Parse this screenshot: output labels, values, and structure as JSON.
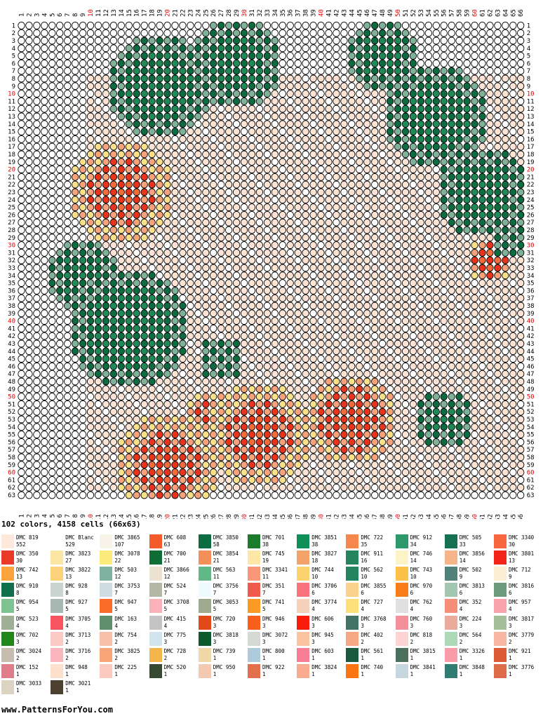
{
  "pattern": {
    "columns": 66,
    "rows": 63,
    "cols_highlight_every": 10,
    "highlight_color": "#e00000",
    "outline_color": "#000000",
    "empty_fill": "#ffffff",
    "default_fill": "#fde3d4",
    "motif_colors": {
      "green_dark": "#0d6b40",
      "green_mid": "#1f8a55",
      "green_light": "#7fb098",
      "green_pale": "#b9d4c6",
      "red": "#e8341c",
      "orange": "#f26b3a",
      "salmon": "#f7a27a",
      "yellow": "#fbe08a",
      "peach": "#fde3d4"
    }
  },
  "summary_text": "102 colors, 4158 cells (66x63)",
  "legend": [
    {
      "name": "DMC 819",
      "count": "552",
      "color": "#fce9dc"
    },
    {
      "name": "DMC Blanc",
      "count": "529",
      "color": "#ffffff"
    },
    {
      "name": "DMC 3865",
      "count": "107",
      "color": "#f8f4ea"
    },
    {
      "name": "DMC 608",
      "count": "63",
      "color": "#f55a2c"
    },
    {
      "name": "DMC 3850",
      "count": "58",
      "color": "#0b6b41"
    },
    {
      "name": "DMC 701",
      "count": "38",
      "color": "#1c7a2c"
    },
    {
      "name": "DMC 3851",
      "count": "38",
      "color": "#0f9058"
    },
    {
      "name": "DMC 722",
      "count": "35",
      "color": "#f7874d"
    },
    {
      "name": "DMC 912",
      "count": "34",
      "color": "#2e9a6c"
    },
    {
      "name": "DMC 505",
      "count": "33",
      "color": "#157152"
    },
    {
      "name": "DMC 3340",
      "count": "30",
      "color": "#f7663d"
    },
    {
      "name": "DMC 350",
      "count": "30",
      "color": "#e83a27"
    },
    {
      "name": "DMC 3823",
      "count": "27",
      "color": "#fbe6a3"
    },
    {
      "name": "DMC 3078",
      "count": "22",
      "color": "#fbea7c"
    },
    {
      "name": "DMC 700",
      "count": "21",
      "color": "#0e6e35"
    },
    {
      "name": "DMC 3854",
      "count": "21",
      "color": "#f39059"
    },
    {
      "name": "DMC 745",
      "count": "19",
      "color": "#fde6a6"
    },
    {
      "name": "DMC 3827",
      "count": "18",
      "color": "#f3a36a"
    },
    {
      "name": "DMC 911",
      "count": "16",
      "color": "#24845d"
    },
    {
      "name": "DMC 746",
      "count": "14",
      "color": "#fcf4c6"
    },
    {
      "name": "DMC 3856",
      "count": "14",
      "color": "#f6b48a"
    },
    {
      "name": "DMC 3801",
      "count": "13",
      "color": "#f3251b"
    },
    {
      "name": "DMC 742",
      "count": "13",
      "color": "#fba33c"
    },
    {
      "name": "DMC 3822",
      "count": "13",
      "color": "#fbd27a"
    },
    {
      "name": "DMC 503",
      "count": "12",
      "color": "#7fb1a0"
    },
    {
      "name": "DMC 3866",
      "count": "12",
      "color": "#ebe2d2"
    },
    {
      "name": "DMC 563",
      "count": "11",
      "color": "#62b787"
    },
    {
      "name": "DMC 3341",
      "count": "11",
      "color": "#f99879"
    },
    {
      "name": "DMC 744",
      "count": "10",
      "color": "#fcd26e"
    },
    {
      "name": "DMC 562",
      "count": "10",
      "color": "#228560"
    },
    {
      "name": "DMC 743",
      "count": "10",
      "color": "#fbc14a"
    },
    {
      "name": "DMC 502",
      "count": "9",
      "color": "#52807a"
    },
    {
      "name": "DMC 712",
      "count": "9",
      "color": "#fbeed2"
    },
    {
      "name": "DMC 910",
      "count": "8",
      "color": "#10704c"
    },
    {
      "name": "DMC 928",
      "count": "8",
      "color": "#c9d3cf"
    },
    {
      "name": "DMC 3753",
      "count": "7",
      "color": "#cfdce2"
    },
    {
      "name": "DMC 524",
      "count": "7",
      "color": "#b2b8a4"
    },
    {
      "name": "DMC 3756",
      "count": "7",
      "color": "#eef9fb"
    },
    {
      "name": "DMC 351",
      "count": "7",
      "color": "#ef5a4c"
    },
    {
      "name": "DMC 3706",
      "count": "6",
      "color": "#f8737c"
    },
    {
      "name": "DMC 3855",
      "count": "6",
      "color": "#fad28c"
    },
    {
      "name": "DMC 970",
      "count": "6",
      "color": "#f87e1c"
    },
    {
      "name": "DMC 3813",
      "count": "6",
      "color": "#a3c6b1"
    },
    {
      "name": "DMC 3816",
      "count": "6",
      "color": "#6b9a7d"
    },
    {
      "name": "DMC 954",
      "count": "5",
      "color": "#7fc393"
    },
    {
      "name": "DMC 927",
      "count": "5",
      "color": "#a8b9b4"
    },
    {
      "name": "DMC 947",
      "count": "5",
      "color": "#fb6b2a"
    },
    {
      "name": "DMC 3708",
      "count": "5",
      "color": "#fbb1b9"
    },
    {
      "name": "DMC 3053",
      "count": "5",
      "color": "#9daa8e"
    },
    {
      "name": "DMC 741",
      "count": "5",
      "color": "#fb9b25"
    },
    {
      "name": "DMC 3774",
      "count": "4",
      "color": "#f6d2bb"
    },
    {
      "name": "DMC 727",
      "count": "4",
      "color": "#fde07a"
    },
    {
      "name": "DMC 762",
      "count": "4",
      "color": "#e0e0e0"
    },
    {
      "name": "DMC 352",
      "count": "4",
      "color": "#f68f7a"
    },
    {
      "name": "DMC 957",
      "count": "4",
      "color": "#f8a2aa"
    },
    {
      "name": "DMC 523",
      "count": "4",
      "color": "#a0ae95"
    },
    {
      "name": "DMC 3705",
      "count": "4",
      "color": "#f6545f"
    },
    {
      "name": "DMC 163",
      "count": "4",
      "color": "#5f8f6c"
    },
    {
      "name": "DMC 415",
      "count": "4",
      "color": "#c4c4c4"
    },
    {
      "name": "DMC 720",
      "count": "3",
      "color": "#e2491a"
    },
    {
      "name": "DMC 946",
      "count": "3",
      "color": "#f65f1c"
    },
    {
      "name": "DMC 606",
      "count": "3",
      "color": "#fa1c0c"
    },
    {
      "name": "DMC 3768",
      "count": "3",
      "color": "#427165"
    },
    {
      "name": "DMC 760",
      "count": "3",
      "color": "#f4909a"
    },
    {
      "name": "DMC 224",
      "count": "3",
      "color": "#eaab9c"
    },
    {
      "name": "DMC 3817",
      "count": "3",
      "color": "#a4c09a"
    },
    {
      "name": "DMC 702",
      "count": "3",
      "color": "#22861c"
    },
    {
      "name": "DMC 3713",
      "count": "2",
      "color": "#fbcac4"
    },
    {
      "name": "DMC 754",
      "count": "2",
      "color": "#f8c0a8"
    },
    {
      "name": "DMC 775",
      "count": "3",
      "color": "#d2e4ec"
    },
    {
      "name": "DMC 3818",
      "count": "3",
      "color": "#0d5a2f"
    },
    {
      "name": "DMC 3072",
      "count": "3",
      "color": "#d4d9d4"
    },
    {
      "name": "DMC 945",
      "count": "3",
      "color": "#fbc3a0"
    },
    {
      "name": "DMC 402",
      "count": "2",
      "color": "#f5a882"
    },
    {
      "name": "DMC 818",
      "count": "2",
      "color": "#fdd4d4"
    },
    {
      "name": "DMC 564",
      "count": "2",
      "color": "#aed9b8"
    },
    {
      "name": "DMC 3779",
      "count": "2",
      "color": "#f8b6a2"
    },
    {
      "name": "DMC 3024",
      "count": "2",
      "color": "#c5bdb0"
    },
    {
      "name": "DMC 3716",
      "count": "2",
      "color": "#fbb6bd"
    },
    {
      "name": "DMC 3825",
      "count": "2",
      "color": "#f8a57a"
    },
    {
      "name": "DMC 728",
      "count": "2",
      "color": "#f4b64a"
    },
    {
      "name": "DMC 739",
      "count": "1",
      "color": "#f0d7a8"
    },
    {
      "name": "DMC 800",
      "count": "1",
      "color": "#aecbdc"
    },
    {
      "name": "DMC 603",
      "count": "1",
      "color": "#f97d95"
    },
    {
      "name": "DMC 561",
      "count": "1",
      "color": "#1b5a3e"
    },
    {
      "name": "DMC 3815",
      "count": "1",
      "color": "#4b6f5c"
    },
    {
      "name": "DMC 3326",
      "count": "1",
      "color": "#fa9ba8"
    },
    {
      "name": "DMC 921",
      "count": "1",
      "color": "#dc5a35"
    },
    {
      "name": "DMC 152",
      "count": "1",
      "color": "#df7d8a"
    },
    {
      "name": "DMC 948",
      "count": "1",
      "color": "#fde0cc"
    },
    {
      "name": "DMC 225",
      "count": "1",
      "color": "#fbc9bd"
    },
    {
      "name": "DMC 520",
      "count": "1",
      "color": "#364a32"
    },
    {
      "name": "DMC 950",
      "count": "1",
      "color": "#f3c9b2"
    },
    {
      "name": "DMC 922",
      "count": "1",
      "color": "#e2704c"
    },
    {
      "name": "DMC 3824",
      "count": "1",
      "color": "#f8ab8e"
    },
    {
      "name": "DMC 740",
      "count": "1",
      "color": "#fc7513"
    },
    {
      "name": "DMC 3841",
      "count": "1",
      "color": "#c6d7e0"
    },
    {
      "name": "DMC 3848",
      "count": "1",
      "color": "#2e7c72"
    },
    {
      "name": "DMC 3776",
      "count": "1",
      "color": "#de6c4b"
    },
    {
      "name": "DMC 3033",
      "count": "1",
      "color": "#dcd3c3"
    },
    {
      "name": "DMC 3021",
      "count": "1",
      "color": "#4c4031"
    }
  ],
  "footer_text": "www.PatternsForYou.com"
}
